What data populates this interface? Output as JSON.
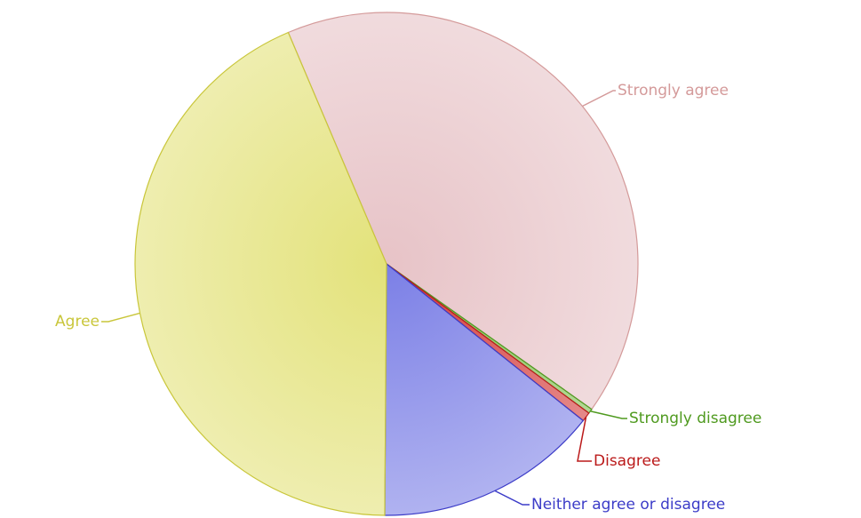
{
  "chart_data": {
    "type": "pie",
    "categories": [
      "Strongly agree",
      "Strongly disagree",
      "Disagree",
      "Neither agree or disagree",
      "Agree"
    ],
    "values": [
      41.2,
      0.3,
      0.6,
      14.4,
      43.5
    ],
    "colors": [
      "#e7c3c7",
      "#7fbf4f",
      "#d33a3a",
      "#7b7fe6",
      "#e3e27a"
    ],
    "label_colors": [
      "#d49a9a",
      "#4f9a1f",
      "#bb1a1a",
      "#3c3cc8",
      "#c9c63a"
    ],
    "start_angle": 337
  }
}
